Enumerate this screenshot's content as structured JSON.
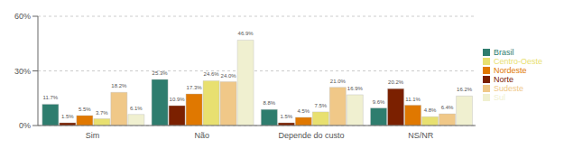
{
  "chart_data": {
    "type": "bar",
    "categories": [
      "Sim",
      "Não",
      "Depende do custo",
      "NS/NR"
    ],
    "series": [
      {
        "name": "Brasil",
        "color": "#2e7d6e",
        "values": [
          11.7,
          25.3,
          8.8,
          9.6
        ],
        "value_labels": [
          "11.7%",
          "25.3%",
          "8.8%",
          "9.6%"
        ]
      },
      {
        "name": "Norte",
        "color": "#7b2000",
        "values": [
          1.5,
          10.9,
          1.5,
          20.2
        ],
        "value_labels": [
          "1.5%",
          "10.9%",
          "1.5%",
          "20.2%"
        ]
      },
      {
        "name": "Nordeste",
        "color": "#e07800",
        "values": [
          5.5,
          17.3,
          4.5,
          11.1
        ],
        "value_labels": [
          "5.5%",
          "17.3%",
          "4.5%",
          "11.1%"
        ]
      },
      {
        "name": "Centro-Oeste",
        "color": "#e8e070",
        "values": [
          3.7,
          24.6,
          7.5,
          4.8
        ],
        "value_labels": [
          "3.7%",
          "24.6%",
          "7.5%",
          "4.8%"
        ]
      },
      {
        "name": "Sudeste",
        "color": "#f0c888",
        "values": [
          18.2,
          24.0,
          21.0,
          6.4
        ],
        "value_labels": [
          "18.2%",
          "24.0%",
          "21.0%",
          "6.4%"
        ]
      },
      {
        "name": "Sul",
        "color": "#f0f0d0",
        "values": [
          6.1,
          46.9,
          16.9,
          16.2
        ],
        "value_labels": [
          "6.1%",
          "46.9%",
          "16.9%",
          "16.2%"
        ]
      }
    ],
    "ylim": [
      0,
      60
    ],
    "yticks": [
      {
        "value": 0,
        "label": "0%"
      },
      {
        "value": 30,
        "label": "30%"
      },
      {
        "value": 60,
        "label": "60%"
      }
    ],
    "grid": true,
    "legend": "right",
    "data_labels": true
  }
}
